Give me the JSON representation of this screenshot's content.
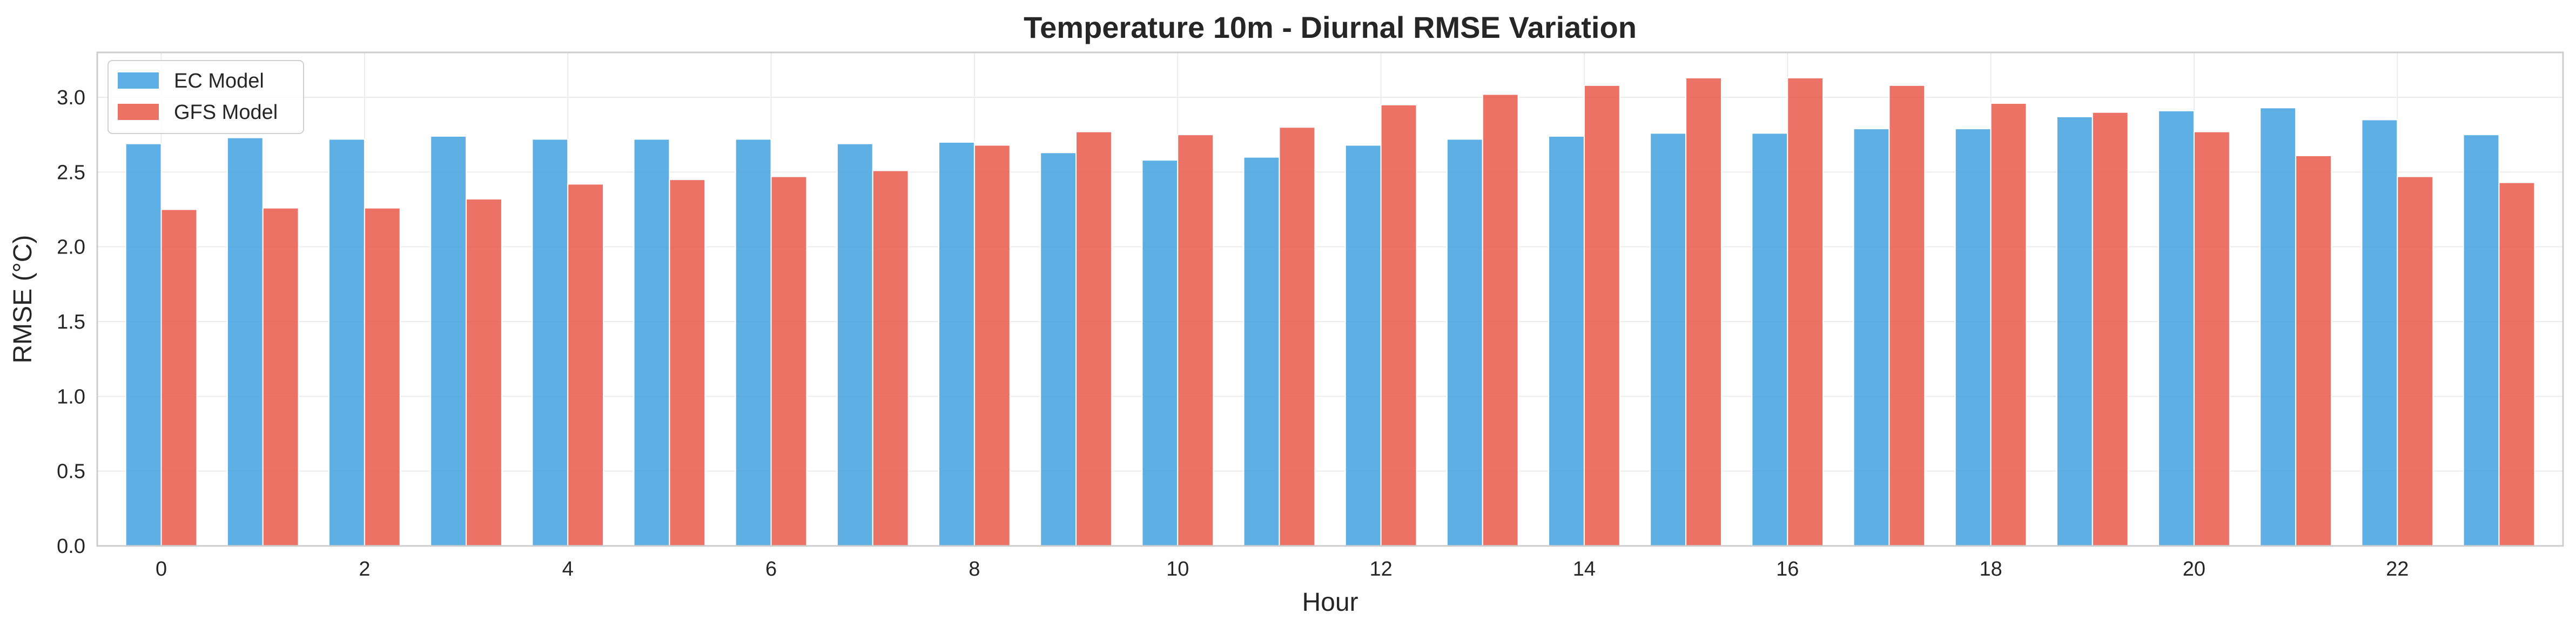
{
  "chart_data": {
    "type": "bar",
    "title": "Temperature 10m - Diurnal RMSE Variation",
    "xlabel": "Hour",
    "ylabel": "RMSE (°C)",
    "ylim": [
      0,
      3.3
    ],
    "yticks": [
      "0.0",
      "0.5",
      "1.0",
      "1.5",
      "2.0",
      "2.5",
      "3.0"
    ],
    "xticks": [
      "0",
      "2",
      "4",
      "6",
      "8",
      "10",
      "12",
      "14",
      "16",
      "18",
      "20",
      "22"
    ],
    "categories": [
      0,
      1,
      2,
      3,
      4,
      5,
      6,
      7,
      8,
      9,
      10,
      11,
      12,
      13,
      14,
      15,
      16,
      17,
      18,
      19,
      20,
      21,
      22,
      23
    ],
    "grid": true,
    "legend_position": "top-left",
    "series": [
      {
        "name": "EC Model",
        "color": "#4da6e0",
        "values": [
          2.69,
          2.73,
          2.72,
          2.74,
          2.72,
          2.72,
          2.72,
          2.69,
          2.7,
          2.63,
          2.58,
          2.6,
          2.68,
          2.72,
          2.74,
          2.76,
          2.76,
          2.79,
          2.79,
          2.87,
          2.91,
          2.93,
          2.85,
          2.75
        ]
      },
      {
        "name": "GFS Model",
        "color": "#eb6355",
        "values": [
          2.25,
          2.26,
          2.26,
          2.32,
          2.42,
          2.45,
          2.47,
          2.51,
          2.68,
          2.77,
          2.75,
          2.8,
          2.95,
          3.02,
          3.08,
          3.13,
          3.13,
          3.08,
          2.96,
          2.9,
          2.77,
          2.61,
          2.47,
          2.43
        ]
      }
    ]
  }
}
